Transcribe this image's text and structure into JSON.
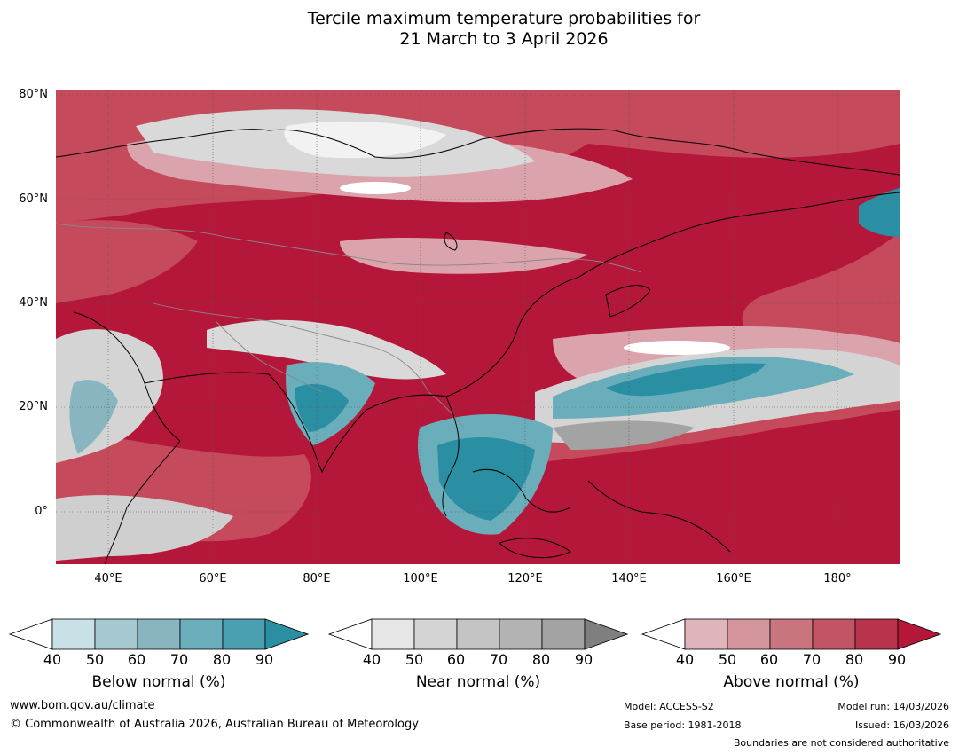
{
  "title": {
    "line1": "Tercile maximum temperature probabilities for",
    "line2": "21 March to 3 April 2026"
  },
  "map": {
    "lat_labels": [
      "80°N",
      "60°N",
      "40°N",
      "20°N",
      "0°"
    ],
    "lon_labels": [
      "40°E",
      "60°E",
      "80°E",
      "100°E",
      "120°E",
      "140°E",
      "160°E",
      "180°"
    ],
    "colors": {
      "above_strong": "#b5173a",
      "above_mid": "#c54a5b",
      "above_light": "#dba4ac",
      "near": "#cfcfcf",
      "near_dark": "#a3a3a3",
      "below_mid": "#6aaebb",
      "below_strong": "#2a8fa3",
      "coast": "#000000",
      "border": "#888888"
    }
  },
  "colorbars": [
    {
      "name": "below",
      "title": "Below normal (%)",
      "ticks": [
        "40",
        "50",
        "60",
        "70",
        "80",
        "90"
      ],
      "colors": [
        "#ffffff",
        "#c8e1e7",
        "#a6c9d0",
        "#88b5c0",
        "#6aaebb",
        "#4aa0b1",
        "#2a8fa3"
      ]
    },
    {
      "name": "near",
      "title": "Near normal (%)",
      "ticks": [
        "40",
        "50",
        "60",
        "70",
        "80",
        "90"
      ],
      "colors": [
        "#ffffff",
        "#e6e6e6",
        "#d4d4d4",
        "#c4c4c4",
        "#b3b3b3",
        "#a3a3a3",
        "#7f7f7f"
      ]
    },
    {
      "name": "above",
      "title": "Above normal (%)",
      "ticks": [
        "40",
        "50",
        "60",
        "70",
        "80",
        "90"
      ],
      "colors": [
        "#ffffff",
        "#dfb5bb",
        "#d4959d",
        "#c97580",
        "#c15566",
        "#b9334c",
        "#b5173a"
      ]
    }
  ],
  "footer": {
    "website": "www.bom.gov.au/climate",
    "copyright": "© Commonwealth of Australia 2026, Australian Bureau of Meteorology",
    "model": "Model: ACCESS-S2",
    "base_period": "Base period: 1981-2018",
    "model_run": "Model run: 14/03/2026",
    "issued": "Issued: 16/03/2026",
    "disclaimer": "Boundaries are not considered authoritative"
  }
}
